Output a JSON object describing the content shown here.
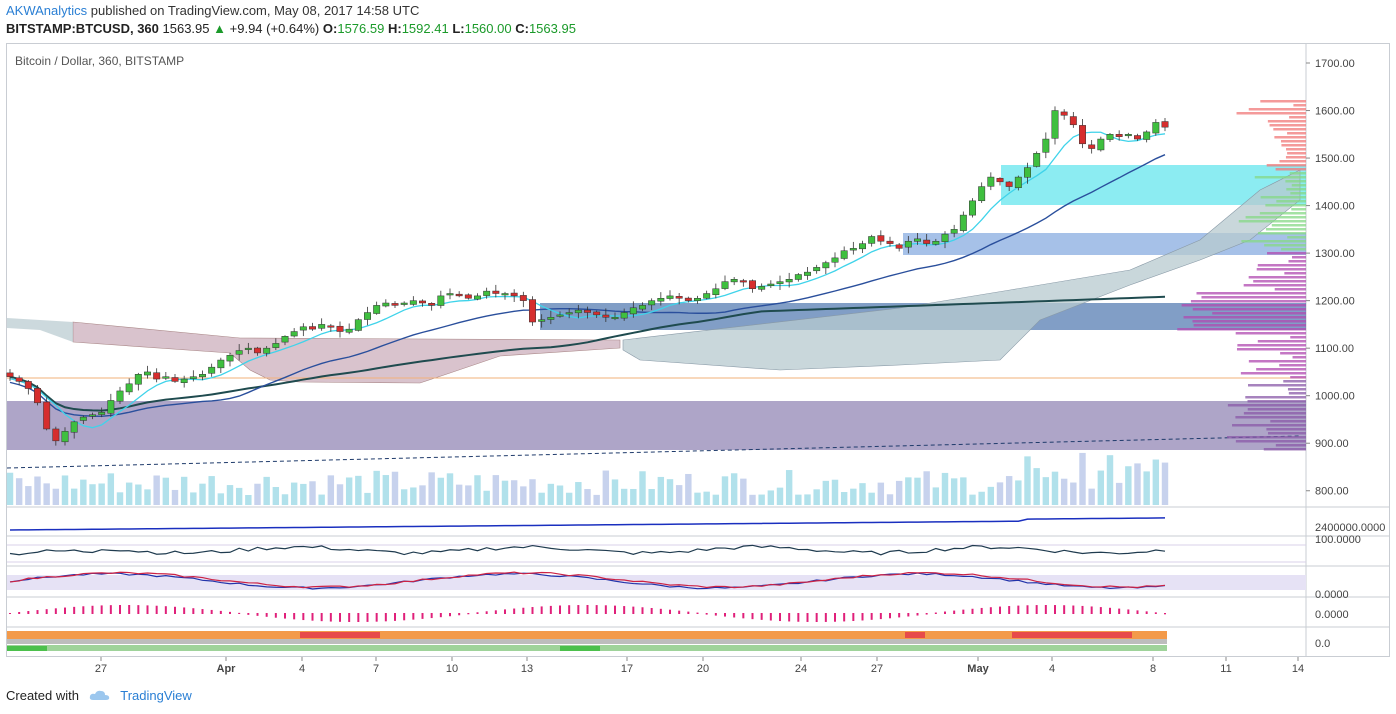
{
  "header": {
    "author": "AKWAnalytics",
    "published_text": "published on TradingView.com, May 08, 2017 14:58 UTC"
  },
  "quote": {
    "symbol": "BITSTAMP:BTCUSD, 360",
    "last": "1563.95",
    "change": "+9.94 (+0.64%)",
    "o_label": "O:",
    "o_val": "1576.59",
    "h_label": "H:",
    "h_val": "1592.41",
    "l_label": "L:",
    "l_val": "1560.00",
    "c_label": "C:",
    "c_val": "1563.95"
  },
  "chart_title": "Bitcoin / Dollar, 360, BITSTAMP",
  "footer": {
    "created_with": "Created with",
    "brand": "TradingView"
  },
  "colors": {
    "up": "#3fbf3f",
    "down": "#d62e2e",
    "cyan": "#3fd3ea",
    "blue": "#2a4f9c",
    "dark": "#1f4b4f",
    "cloud_red": "#c9a9b8",
    "cloud_green": "#b7c9cf"
  },
  "chart_data": {
    "type": "candlestick",
    "ylim": [
      770,
      1740
    ],
    "y_ticks": [
      "1700.00",
      "1600.00",
      "1500.00",
      "1400.00",
      "1300.00",
      "1200.00",
      "1100.00",
      "1000.00",
      "900.00",
      "800.00"
    ],
    "indicator_ticks": [
      "2400000.0000",
      "100.0000",
      "0.0000",
      "0.0000",
      "0.0"
    ],
    "x_ticks": [
      "27",
      "Apr",
      "4",
      "7",
      "10",
      "13",
      "17",
      "20",
      "24",
      "27",
      "May",
      "4",
      "8",
      "11",
      "14"
    ],
    "close_prices": [
      1040,
      1030,
      1015,
      985,
      930,
      905,
      925,
      945,
      955,
      960,
      965,
      990,
      1010,
      1025,
      1045,
      1050,
      1035,
      1040,
      1030,
      1035,
      1040,
      1045,
      1060,
      1075,
      1085,
      1095,
      1100,
      1090,
      1100,
      1110,
      1125,
      1135,
      1145,
      1140,
      1150,
      1145,
      1135,
      1140,
      1160,
      1175,
      1190,
      1195,
      1190,
      1195,
      1200,
      1195,
      1190,
      1210,
      1215,
      1210,
      1205,
      1210,
      1220,
      1215,
      1215,
      1210,
      1200,
      1155,
      1160,
      1165,
      1170,
      1175,
      1180,
      1175,
      1170,
      1165,
      1165,
      1175,
      1185,
      1190,
      1200,
      1205,
      1210,
      1205,
      1200,
      1205,
      1215,
      1225,
      1240,
      1245,
      1240,
      1225,
      1230,
      1235,
      1240,
      1245,
      1255,
      1260,
      1270,
      1280,
      1290,
      1305,
      1310,
      1320,
      1335,
      1325,
      1320,
      1310,
      1325,
      1330,
      1320,
      1325,
      1340,
      1350,
      1380,
      1410,
      1440,
      1460,
      1450,
      1440,
      1460,
      1480,
      1510,
      1540,
      1600,
      1590,
      1570,
      1530,
      1520,
      1540,
      1550,
      1545,
      1550,
      1540,
      1555,
      1575,
      1565
    ]
  }
}
